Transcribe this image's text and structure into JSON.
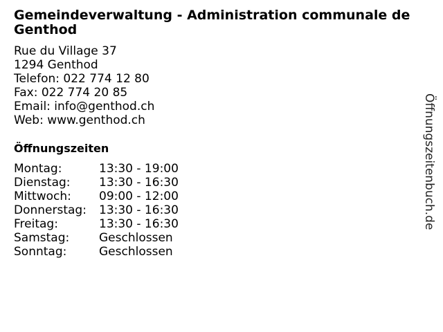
{
  "title": "Gemeindeverwaltung - Administration communale de Genthod",
  "address": [
    "Rue du Village 37",
    "1294 Genthod",
    "Telefon: 022 774 12 80",
    "Fax: 022 774 20 85",
    "Email: info@genthod.ch",
    "Web: www.genthod.ch"
  ],
  "hours_heading": "Öffnungszeiten",
  "hours": [
    {
      "day": "Montag:",
      "time": "13:30 - 19:00"
    },
    {
      "day": "Dienstag:",
      "time": "13:30 - 16:30"
    },
    {
      "day": "Mittwoch:",
      "time": "09:00 - 12:00"
    },
    {
      "day": "Donnerstag:",
      "time": "13:30 - 16:30"
    },
    {
      "day": "Freitag:",
      "time": "13:30 - 16:30"
    },
    {
      "day": "Samstag:",
      "time": "Geschlossen"
    },
    {
      "day": "Sonntag:",
      "time": "Geschlossen"
    }
  ],
  "watermark": "Öffnungszeitenbuch.de"
}
